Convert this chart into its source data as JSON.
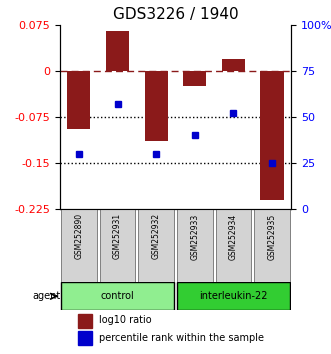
{
  "title": "GDS3226 / 1940",
  "samples": [
    "GSM252890",
    "GSM252931",
    "GSM252932",
    "GSM252933",
    "GSM252934",
    "GSM252935"
  ],
  "log10_ratio": [
    -0.095,
    0.065,
    -0.115,
    -0.025,
    0.02,
    -0.21
  ],
  "percentile_rank": [
    30,
    57,
    30,
    40,
    52,
    25
  ],
  "bar_color": "#8B1A1A",
  "dot_color": "#0000CC",
  "ylim_left": [
    -0.225,
    0.075
  ],
  "ylim_right": [
    0,
    100
  ],
  "yticks_left": [
    0.075,
    0.0,
    -0.075,
    -0.15,
    -0.225
  ],
  "ytick_left_labels": [
    "0.075",
    "0",
    "-0.075",
    "-0.15",
    "-0.225"
  ],
  "yticks_right": [
    100,
    75,
    50,
    25,
    0
  ],
  "ytick_right_labels": [
    "100%",
    "75",
    "50",
    "25",
    "0"
  ],
  "dotted_lines": [
    -0.075,
    -0.15
  ],
  "ctrl_color": "#90EE90",
  "il22_color": "#32CD32",
  "ctrl_label": "control",
  "il22_label": "interleukin-22",
  "agent_label": "agent",
  "legend_items": [
    {
      "label": "log10 ratio",
      "color": "#8B1A1A"
    },
    {
      "label": "percentile rank within the sample",
      "color": "#0000CC"
    }
  ],
  "bar_width": 0.6,
  "title_fontsize": 11,
  "tick_fontsize": 8,
  "label_fontsize": 7
}
